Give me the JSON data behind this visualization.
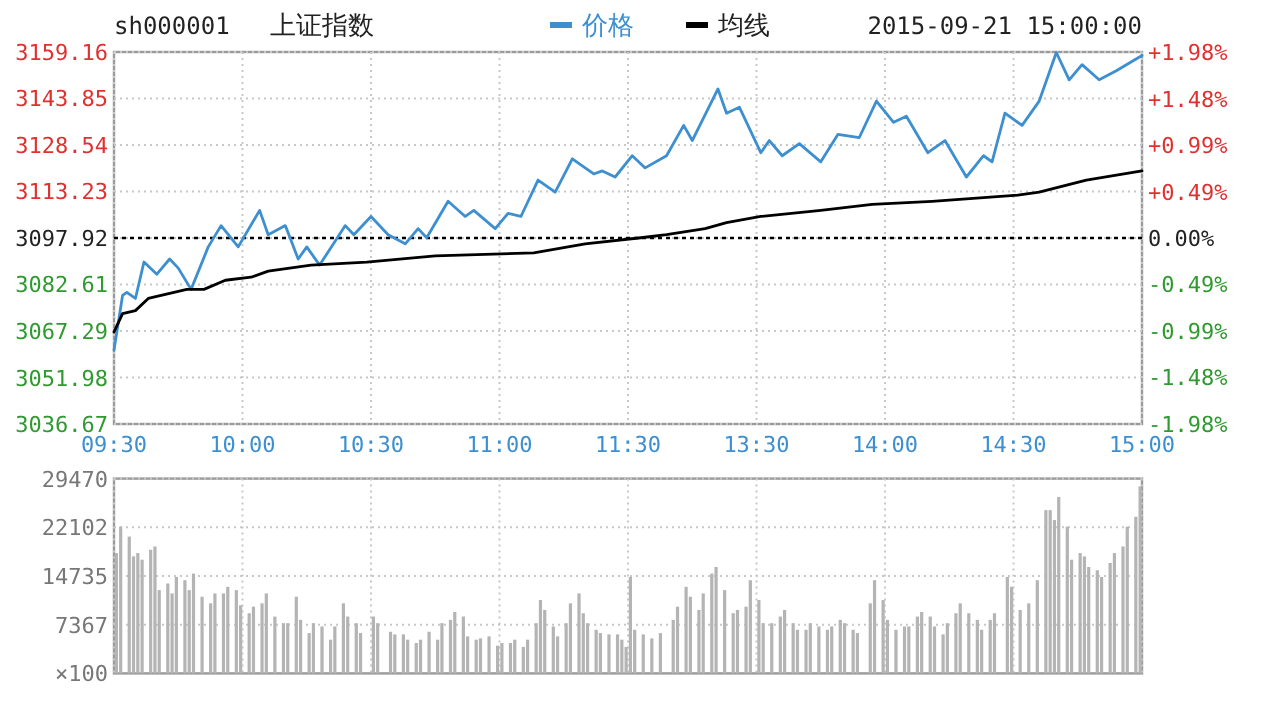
{
  "chart_data": [
    {
      "type": "line",
      "title": "上证指数",
      "subtitle": "sh000001",
      "annotations": [
        "2015-09-21 15:00:00"
      ],
      "legend": "top",
      "grid": true,
      "categories": [
        "09:30",
        null,
        null,
        null,
        null,
        null,
        null,
        null,
        null,
        null,
        null,
        null,
        null,
        null,
        null,
        null,
        null,
        null,
        null,
        null,
        null,
        null,
        null,
        null,
        null,
        null,
        null,
        null,
        null,
        null,
        "10:00",
        null,
        null,
        null,
        null,
        null,
        null,
        null,
        null,
        null,
        null,
        null,
        null,
        null,
        null,
        null,
        null,
        null,
        null,
        null,
        null,
        null,
        null,
        null,
        null,
        null,
        null,
        null,
        null,
        null,
        "10:30",
        null,
        null,
        null,
        null,
        null,
        null,
        null,
        null,
        null,
        null,
        null,
        null,
        null,
        null,
        null,
        null,
        null,
        null,
        null,
        null,
        null,
        null,
        null,
        null,
        null,
        null,
        null,
        null,
        null,
        "11:00",
        null,
        null,
        null,
        null,
        null,
        null,
        null,
        null,
        null,
        null,
        null,
        null,
        null,
        null,
        null,
        null,
        null,
        null,
        null,
        null,
        null,
        null,
        null,
        null,
        null,
        null,
        null,
        null,
        null,
        "11:30",
        null,
        null,
        null,
        null,
        null,
        null,
        null,
        null,
        null,
        null,
        null,
        null,
        null,
        null,
        null,
        null,
        null,
        null,
        null,
        null,
        null,
        null,
        null,
        null,
        null,
        null,
        null,
        null,
        null,
        "13:30",
        null,
        null,
        null,
        null,
        null,
        null,
        null,
        null,
        null,
        null,
        null,
        null,
        null,
        null,
        null,
        null,
        null,
        null,
        null,
        null,
        null,
        null,
        null,
        null,
        null,
        null,
        null,
        null,
        null,
        "14:00",
        null,
        null,
        null,
        null,
        null,
        null,
        null,
        null,
        null,
        null,
        null,
        null,
        null,
        null,
        null,
        null,
        null,
        null,
        null,
        null,
        null,
        null,
        null,
        null,
        null,
        null,
        null,
        null,
        null,
        "14:30",
        null,
        null,
        null,
        null,
        null,
        null,
        null,
        null,
        null,
        null,
        null,
        null,
        null,
        null,
        null,
        null,
        null,
        null,
        null,
        null,
        null,
        null,
        null,
        null,
        null,
        null,
        null,
        null,
        null,
        "15:00"
      ],
      "ylim": [
        3036.67,
        3159.16
      ],
      "yticks": [
        3036.67,
        3051.98,
        3067.29,
        3082.61,
        3097.92,
        3113.23,
        3128.54,
        3143.85,
        3159.16
      ],
      "y2lim": [
        -1.98,
        1.98
      ],
      "y2ticks": [
        {
          "value": -1.98,
          "label": "-1.98%"
        },
        {
          "value": -1.48,
          "label": "-1.48%"
        },
        {
          "value": -0.99,
          "label": "-0.99%"
        },
        {
          "value": -0.49,
          "label": "-0.49%"
        },
        {
          "value": 0,
          "label": "0.00%"
        },
        {
          "value": 0.49,
          "label": "+0.49%"
        },
        {
          "value": 0.99,
          "label": "+0.99%"
        },
        {
          "value": 1.48,
          "label": "+1.48%"
        },
        {
          "value": 1.98,
          "label": "+1.98%"
        }
      ],
      "ref_lines": [
        {
          "axis": "y",
          "value": 3097.92,
          "color": "#000000",
          "line_style": "dotted"
        }
      ],
      "series": [
        {
          "name": "价格",
          "color": "#3d8fd0",
          "values": [
            3061,
            null,
            3079,
            3080,
            null,
            3078,
            null,
            3090,
            null,
            null,
            3086,
            null,
            null,
            3091,
            null,
            3088,
            null,
            null,
            3081,
            null,
            null,
            null,
            3095,
            null,
            null,
            3102,
            null,
            null,
            null,
            3095,
            null,
            null,
            null,
            null,
            3107,
            null,
            3099,
            null,
            null,
            null,
            3102,
            null,
            null,
            3091,
            null,
            3095,
            null,
            null,
            3089,
            null,
            null,
            null,
            null,
            null,
            3102,
            null,
            3099,
            null,
            null,
            null,
            3105,
            null,
            null,
            null,
            3099,
            null,
            null,
            null,
            3096,
            null,
            null,
            3101,
            null,
            3098,
            null,
            null,
            null,
            null,
            3110,
            null,
            null,
            null,
            3105,
            null,
            3107,
            null,
            null,
            null,
            null,
            3101,
            null,
            null,
            3106,
            null,
            null,
            3105,
            null,
            null,
            null,
            3117,
            null,
            null,
            null,
            3113,
            null,
            null,
            null,
            3124,
            null,
            null,
            null,
            null,
            3119,
            null,
            3120,
            null,
            null,
            3118,
            null,
            null,
            null,
            3125,
            null,
            null,
            3121,
            null,
            null,
            null,
            null,
            3125,
            null,
            null,
            null,
            3135,
            null,
            3130,
            null,
            null,
            null,
            null,
            null,
            3147,
            null,
            3139,
            null,
            null,
            3141,
            null,
            null,
            null,
            null,
            3126,
            null,
            3130,
            null,
            null,
            3125,
            null,
            null,
            null,
            3129,
            null,
            null,
            null,
            null,
            3123,
            null,
            null,
            null,
            3132,
            null,
            null,
            null,
            null,
            3131,
            null,
            null,
            null,
            3143,
            null,
            null,
            null,
            3136,
            null,
            null,
            3138,
            null,
            null,
            null,
            null,
            3126,
            null,
            null,
            null,
            3130,
            null,
            null,
            null,
            null,
            3118,
            null,
            null,
            null,
            3125,
            null,
            3123,
            null,
            null,
            3139,
            null,
            null,
            null,
            3135,
            null,
            null,
            null,
            3143,
            null,
            null,
            null,
            3159,
            null,
            null,
            3150,
            null,
            null,
            3155,
            null,
            null,
            null,
            3150,
            null,
            null,
            null,
            3153,
            null,
            null,
            null,
            null,
            null,
            3158
          ]
        },
        {
          "name": "均线",
          "color": "#000000",
          "values": [
            3067,
            null,
            3073,
            null,
            null,
            3074,
            null,
            null,
            3078,
            null,
            null,
            null,
            null,
            null,
            3080,
            null,
            null,
            3081,
            null,
            null,
            null,
            3081,
            null,
            null,
            null,
            null,
            3084,
            null,
            null,
            null,
            null,
            null,
            3085,
            null,
            null,
            null,
            3087,
            null,
            null,
            null,
            null,
            null,
            null,
            null,
            null,
            null,
            3089,
            null,
            null,
            null,
            null,
            null,
            null,
            null,
            null,
            null,
            null,
            null,
            null,
            3090,
            null,
            null,
            null,
            null,
            null,
            null,
            null,
            null,
            null,
            null,
            null,
            null,
            null,
            null,
            null,
            3092,
            null,
            null,
            null,
            null,
            null,
            null,
            null,
            null,
            null,
            null,
            null,
            null,
            null,
            null,
            null,
            null,
            null,
            null,
            null,
            null,
            null,
            null,
            3093,
            null,
            null,
            null,
            null,
            null,
            null,
            null,
            null,
            null,
            null,
            null,
            3096,
            null,
            null,
            null,
            null,
            null,
            null,
            null,
            null,
            null,
            null,
            null,
            null,
            3098,
            null,
            null,
            null,
            null,
            null,
            3099,
            null,
            null,
            null,
            null,
            null,
            null,
            null,
            null,
            3101,
            null,
            null,
            null,
            null,
            3103,
            null,
            null,
            null,
            null,
            null,
            null,
            null,
            3105,
            null,
            null,
            null,
            null,
            null,
            null,
            null,
            null,
            null,
            null,
            null,
            null,
            null,
            3107,
            null,
            null,
            null,
            null,
            null,
            null,
            null,
            null,
            null,
            null,
            null,
            3109,
            null,
            null,
            null,
            null,
            null,
            null,
            null,
            null,
            null,
            null,
            null,
            null,
            null,
            3110,
            null,
            null,
            null,
            null,
            null,
            null,
            null,
            null,
            null,
            null,
            null,
            null,
            null,
            null,
            null,
            null,
            null,
            null,
            null,
            3112,
            null,
            null,
            null,
            null,
            3113,
            null,
            null,
            null,
            null,
            null,
            null,
            null,
            null,
            null,
            null,
            3117,
            null,
            null,
            null,
            null,
            null,
            null,
            null,
            null,
            null,
            null,
            null,
            null,
            3120
          ]
        }
      ]
    },
    {
      "type": "bar",
      "color": "#b4b4b4",
      "grid": true,
      "ylabel": "×100",
      "categories": [
        null,
        null,
        null,
        null,
        null,
        null,
        null,
        null,
        null,
        null,
        null,
        null,
        null,
        null,
        null,
        null,
        null,
        null,
        null,
        null,
        null,
        null,
        null,
        null,
        null,
        null,
        null,
        null,
        null,
        null,
        null,
        null,
        null,
        null,
        null,
        null,
        null,
        null,
        null,
        null,
        null,
        null,
        null,
        null,
        null,
        null,
        null,
        null,
        null,
        null,
        null,
        null,
        null,
        null,
        null,
        null,
        null,
        null,
        null,
        null,
        null,
        null,
        null,
        null,
        null,
        null,
        null,
        null,
        null,
        null,
        null,
        null,
        null,
        null,
        null,
        null,
        null,
        null,
        null,
        null,
        null,
        null,
        null,
        null,
        null,
        null,
        null,
        null,
        null,
        null,
        null,
        null,
        null,
        null,
        null,
        null,
        null,
        null,
        null,
        null,
        null,
        null,
        null,
        null,
        null,
        null,
        null,
        null,
        null,
        null,
        null,
        null,
        null,
        null,
        null,
        null,
        null,
        null,
        null,
        null,
        null,
        null,
        null,
        null,
        null,
        null,
        null,
        null,
        null,
        null,
        null,
        null,
        null,
        null,
        null,
        null,
        null,
        null,
        null,
        null,
        null,
        null,
        null,
        null,
        null,
        null,
        null,
        null,
        null,
        null,
        null,
        null,
        null,
        null,
        null,
        null,
        null,
        null,
        null,
        null,
        null,
        null,
        null,
        null,
        null,
        null,
        null,
        null,
        null,
        null,
        null,
        null,
        null,
        null,
        null,
        null,
        null,
        null,
        null,
        null,
        null,
        null,
        null,
        null,
        null,
        null,
        null,
        null,
        null,
        null,
        null,
        null,
        null,
        null,
        null,
        null,
        null,
        null,
        null,
        null,
        null,
        null,
        null,
        null,
        null,
        null,
        null,
        null,
        null,
        null,
        null,
        null,
        null,
        null,
        null,
        null,
        null,
        null,
        null,
        null,
        null,
        null,
        null,
        null,
        null,
        null,
        null,
        null,
        null,
        null,
        null,
        null,
        null,
        null,
        null,
        null,
        null,
        null,
        null,
        null,
        null
      ],
      "ylim": [
        0,
        29470
      ],
      "yticks": [
        7367,
        14735,
        22102,
        29470
      ],
      "values": [
        18200,
        22200,
        null,
        20700,
        17700,
        18200,
        17200,
        null,
        18700,
        19200,
        12600,
        null,
        13600,
        12100,
        14600,
        null,
        14100,
        12600,
        15100,
        null,
        11600,
        null,
        10600,
        12100,
        null,
        12100,
        13100,
        null,
        12600,
        10300,
        null,
        9100,
        10100,
        null,
        10600,
        12100,
        null,
        8600,
        null,
        7600,
        7600,
        null,
        11600,
        8100,
        null,
        6100,
        7600,
        null,
        7100,
        null,
        5100,
        7100,
        null,
        10600,
        8600,
        null,
        7600,
        6100,
        null,
        null,
        8600,
        7600,
        null,
        null,
        6300,
        5900,
        null,
        5900,
        5100,
        null,
        4600,
        5100,
        null,
        6300,
        null,
        5100,
        7600,
        null,
        8100,
        9300,
        null,
        8600,
        5600,
        null,
        5100,
        5300,
        null,
        5600,
        null,
        4200,
        4600,
        null,
        4600,
        5100,
        null,
        4000,
        5100,
        null,
        7600,
        11100,
        9600,
        null,
        7100,
        5600,
        null,
        7600,
        10600,
        null,
        12100,
        9100,
        7600,
        null,
        6600,
        6100,
        null,
        5900,
        null,
        5900,
        5100,
        4000,
        14600,
        6600,
        null,
        5900,
        null,
        5300,
        null,
        6100,
        null,
        null,
        8100,
        10100,
        null,
        13100,
        11600,
        null,
        9600,
        12100,
        null,
        15100,
        16100,
        null,
        12600,
        null,
        9100,
        9600,
        null,
        10100,
        14100,
        null,
        11100,
        7600,
        null,
        7600,
        null,
        8600,
        9600,
        null,
        7600,
        6600,
        null,
        6600,
        7600,
        null,
        7100,
        null,
        6600,
        7100,
        null,
        8100,
        7600,
        null,
        6600,
        6100,
        null,
        null,
        10600,
        14100,
        null,
        11100,
        8100,
        null,
        6600,
        null,
        7100,
        7100,
        null,
        8600,
        9300,
        null,
        8600,
        7100,
        null,
        5900,
        7600,
        null,
        9100,
        10600,
        null,
        9100,
        null,
        8100,
        6600,
        null,
        8100,
        9100,
        null,
        null,
        14600,
        13100,
        null,
        9600,
        null,
        10600,
        null,
        14100,
        null,
        24700,
        24700,
        23200,
        26700,
        null,
        22200,
        17200,
        null,
        18200,
        17700,
        16100,
        null,
        15600,
        14600,
        null,
        16700,
        18200,
        null,
        19200,
        22200,
        null,
        23700,
        28300,
        null
      ]
    }
  ]
}
